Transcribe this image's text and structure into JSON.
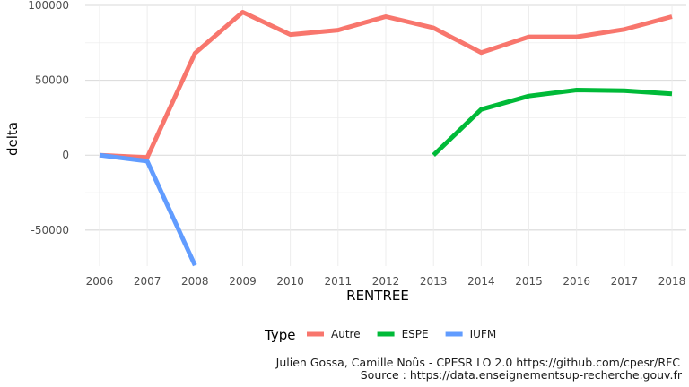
{
  "chart_data": {
    "type": "line",
    "xlabel": "RENTREE",
    "ylabel": "delta",
    "x": [
      2006,
      2007,
      2008,
      2009,
      2010,
      2011,
      2012,
      2013,
      2014,
      2015,
      2016,
      2017,
      2018
    ],
    "x_ticks": [
      "2006",
      "2007",
      "2008",
      "2009",
      "2010",
      "2011",
      "2012",
      "2013",
      "2014",
      "2015",
      "2016",
      "2017",
      "2018"
    ],
    "y_ticks": [
      {
        "value": 100000,
        "label": "100000"
      },
      {
        "value": 50000,
        "label": "50000"
      },
      {
        "value": 0,
        "label": "0"
      },
      {
        "value": -50000,
        "label": "-50000"
      }
    ],
    "ylim": [
      -74000,
      100000
    ],
    "xlim": [
      2005.7,
      2018.3
    ],
    "grid": true,
    "legend": {
      "title": "Type",
      "position": "bottom"
    },
    "series": [
      {
        "name": "Autre",
        "color": "#F8766D",
        "points": [
          [
            2006,
            0
          ],
          [
            2007,
            -1500
          ],
          [
            2008,
            68000
          ],
          [
            2009,
            95500
          ],
          [
            2010,
            80500
          ],
          [
            2011,
            83500
          ],
          [
            2012,
            92500
          ],
          [
            2013,
            85000
          ],
          [
            2014,
            68500
          ],
          [
            2015,
            79000
          ],
          [
            2016,
            79000
          ],
          [
            2017,
            84000
          ],
          [
            2018,
            92500
          ]
        ]
      },
      {
        "name": "ESPE",
        "color": "#00BA38",
        "points": [
          [
            2013,
            0
          ],
          [
            2014,
            30500
          ],
          [
            2015,
            39500
          ],
          [
            2016,
            43500
          ],
          [
            2017,
            43000
          ],
          [
            2018,
            41000
          ]
        ]
      },
      {
        "name": "IUFM",
        "color": "#619CFF",
        "points": [
          [
            2006,
            0
          ],
          [
            2007,
            -4000
          ],
          [
            2008,
            -73500
          ]
        ]
      }
    ],
    "caption": [
      "Julien Gossa, Camille Noûs - CPESR LO 2.0 https://github.com/cpesr/RFC",
      "Source : https://data.enseignementsup-recherche.gouv.fr"
    ]
  }
}
